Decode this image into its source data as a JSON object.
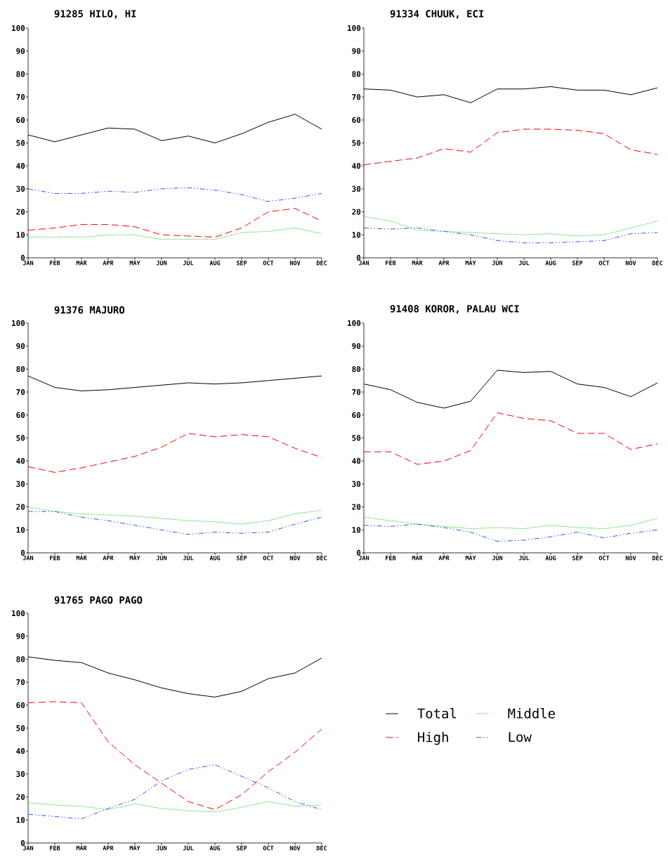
{
  "chart_data": [
    {
      "type": "line",
      "title": "91285 HILO, HI",
      "categories": [
        "JAN",
        "FEB",
        "MAR",
        "APR",
        "MAY",
        "JUN",
        "JUL",
        "AUG",
        "SEP",
        "OCT",
        "NOV",
        "DEC"
      ],
      "ylim": [
        0,
        100
      ],
      "yticks": [
        0,
        10,
        20,
        30,
        40,
        50,
        60,
        70,
        80,
        90,
        100
      ],
      "legend": false,
      "series": [
        {
          "color": "#000000",
          "line_style": "solid",
          "values": [
            53.5,
            50.5,
            53.5,
            56.5,
            56,
            51,
            53,
            50,
            54,
            59,
            62.5,
            56
          ]
        },
        {
          "color": "#00cc00",
          "line_style": "dotted",
          "values": [
            9,
            9,
            9,
            10,
            10,
            8,
            8,
            8,
            11,
            11.5,
            13,
            10.5
          ]
        },
        {
          "color": "#ff0000",
          "line_style": "dashed",
          "values": [
            12,
            13,
            14.5,
            14.5,
            13.5,
            10,
            9.5,
            9,
            13,
            20,
            21.5,
            16
          ]
        },
        {
          "color": "#3355ff",
          "line_style": "dashdotted",
          "values": [
            30,
            28,
            28,
            29,
            28.5,
            30,
            30.5,
            29.5,
            27.5,
            24.5,
            26,
            28
          ]
        }
      ]
    },
    {
      "type": "line",
      "title": "91334 CHUUK, ECI",
      "categories": [
        "JAN",
        "FEB",
        "MAR",
        "APR",
        "MAY",
        "JUN",
        "JUL",
        "AUG",
        "SEP",
        "OCT",
        "NOV",
        "DEC"
      ],
      "ylim": [
        0,
        100
      ],
      "yticks": [
        0,
        10,
        20,
        30,
        40,
        50,
        60,
        70,
        80,
        90,
        100
      ],
      "legend": false,
      "series": [
        {
          "color": "#000000",
          "line_style": "solid",
          "values": [
            73.5,
            73,
            70,
            71,
            67.5,
            73.5,
            73.5,
            74.5,
            73,
            73,
            71,
            74
          ]
        },
        {
          "color": "#00cc00",
          "line_style": "dotted",
          "values": [
            18,
            16,
            12,
            11.5,
            11,
            10.5,
            10,
            10.5,
            9.5,
            10,
            13,
            16
          ]
        },
        {
          "color": "#ff0000",
          "line_style": "dashed",
          "values": [
            40.5,
            42,
            43.5,
            47.5,
            46,
            54.5,
            56,
            56,
            55.5,
            54,
            47,
            45
          ]
        },
        {
          "color": "#3355ff",
          "line_style": "dashdotted",
          "values": [
            13,
            12.5,
            13,
            11.5,
            10,
            7.5,
            6.5,
            6.5,
            7,
            7.5,
            10.5,
            11
          ]
        }
      ]
    },
    {
      "type": "line",
      "title": "91376 MAJURO",
      "categories": [
        "JAN",
        "FEB",
        "MAR",
        "APR",
        "MAY",
        "JUN",
        "JUL",
        "AUG",
        "SEP",
        "OCT",
        "NOV",
        "DEC"
      ],
      "ylim": [
        0,
        100
      ],
      "yticks": [
        0,
        10,
        20,
        30,
        40,
        50,
        60,
        70,
        80,
        90,
        100
      ],
      "legend": false,
      "series": [
        {
          "color": "#000000",
          "line_style": "solid",
          "values": [
            77,
            72,
            70.5,
            71,
            72,
            73,
            74,
            73.5,
            74,
            75,
            76,
            77
          ]
        },
        {
          "color": "#00cc00",
          "line_style": "dotted",
          "values": [
            20,
            18,
            17,
            16.5,
            16,
            15,
            14,
            13.5,
            12.5,
            14,
            17,
            18.5
          ]
        },
        {
          "color": "#ff0000",
          "line_style": "dashed",
          "values": [
            37.5,
            35,
            37,
            39.5,
            42,
            46,
            52,
            50.5,
            51.5,
            50.5,
            45.5,
            41.5
          ]
        },
        {
          "color": "#3355ff",
          "line_style": "dashdotted",
          "values": [
            18,
            18,
            15.5,
            14,
            12,
            10,
            8,
            9,
            8.5,
            9,
            12.5,
            15.5
          ]
        }
      ]
    },
    {
      "type": "line",
      "title": "91408 KOROR, PALAU WCI",
      "categories": [
        "JAN",
        "FEB",
        "MAR",
        "APR",
        "MAY",
        "JUN",
        "JUL",
        "AUG",
        "SEP",
        "OCT",
        "NOV",
        "DEC"
      ],
      "ylim": [
        0,
        100
      ],
      "yticks": [
        0,
        10,
        20,
        30,
        40,
        50,
        60,
        70,
        80,
        90,
        100
      ],
      "legend": false,
      "series": [
        {
          "color": "#000000",
          "line_style": "solid",
          "values": [
            73.5,
            71,
            65.5,
            63,
            66,
            79.5,
            78.5,
            79,
            73.5,
            72,
            68,
            74
          ]
        },
        {
          "color": "#00cc00",
          "line_style": "dotted",
          "values": [
            15.5,
            14,
            12.5,
            11.5,
            10.5,
            11,
            10.5,
            12,
            11,
            10.5,
            12,
            15
          ]
        },
        {
          "color": "#ff0000",
          "line_style": "dashed",
          "values": [
            44,
            44,
            38.5,
            40,
            44.5,
            61,
            58.5,
            57.5,
            52,
            52,
            45,
            47.5
          ]
        },
        {
          "color": "#3355ff",
          "line_style": "dashdotted",
          "values": [
            12,
            11.5,
            12.5,
            11,
            9,
            5,
            5.5,
            7,
            9,
            6.5,
            8.5,
            10
          ]
        }
      ]
    },
    {
      "type": "line",
      "title": "91765 PAGO PAGO",
      "categories": [
        "JAN",
        "FEB",
        "MAR",
        "APR",
        "MAY",
        "JUN",
        "JUL",
        "AUG",
        "SEP",
        "OCT",
        "NOV",
        "DEC"
      ],
      "ylim": [
        0,
        100
      ],
      "yticks": [
        0,
        10,
        20,
        30,
        40,
        50,
        60,
        70,
        80,
        90,
        100
      ],
      "legend": "right",
      "series": [
        {
          "name": "Total",
          "color": "#000000",
          "line_style": "solid",
          "values": [
            81,
            79.5,
            78.5,
            74,
            71,
            67.5,
            65,
            63.5,
            66,
            71.5,
            74,
            80.5
          ]
        },
        {
          "name": "Middle",
          "color": "#00cc00",
          "line_style": "dotted",
          "values": [
            17.5,
            16.5,
            16,
            14.5,
            17,
            15,
            14,
            13.5,
            15.5,
            18,
            16,
            16.5
          ]
        },
        {
          "name": "High",
          "color": "#ff0000",
          "line_style": "dashed",
          "values": [
            61,
            61.5,
            61,
            44,
            34,
            26,
            18,
            14.5,
            21,
            31,
            39.5,
            49.5
          ]
        },
        {
          "name": "Low",
          "color": "#3355ff",
          "line_style": "dashdotted",
          "values": [
            12.5,
            11.5,
            10.5,
            15,
            19,
            27,
            32,
            34,
            29,
            24,
            18,
            14.5
          ]
        }
      ]
    }
  ]
}
